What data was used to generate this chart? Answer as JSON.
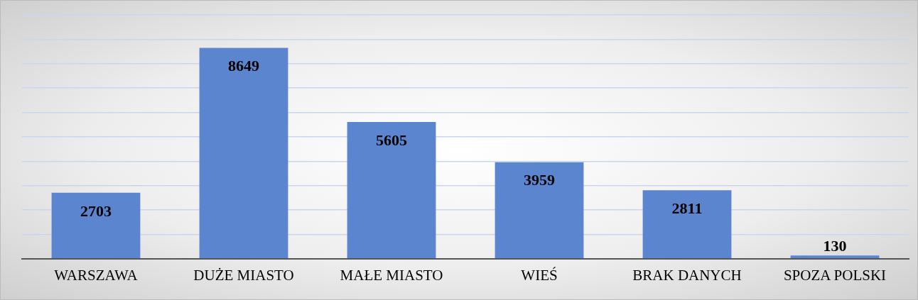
{
  "chart_data": {
    "type": "bar",
    "categories": [
      "WARSZAWA",
      "DUŻE MIASTO",
      "MAŁE MIASTO",
      "WIEŚ",
      "BRAK DANYCH",
      "SPOZA POLSKI"
    ],
    "values": [
      2703,
      8649,
      5605,
      3959,
      2811,
      130
    ],
    "color": "#5b86cf",
    "ylim": [
      0,
      10000
    ],
    "yticks": [
      {
        "value": 0,
        "label": null
      },
      {
        "value": 1000,
        "label": null
      },
      {
        "value": 2000,
        "label": null
      },
      {
        "value": 3000,
        "label": null
      },
      {
        "value": 4000,
        "label": null
      },
      {
        "value": 5000,
        "label": null
      },
      {
        "value": 6000,
        "label": null
      },
      {
        "value": 7000,
        "label": null
      },
      {
        "value": 8000,
        "label": null
      },
      {
        "value": 9000,
        "label": null
      },
      {
        "value": 10000,
        "label": null
      }
    ],
    "grid": "y",
    "tick_labels": "x",
    "data_labels": true,
    "legend": false
  }
}
